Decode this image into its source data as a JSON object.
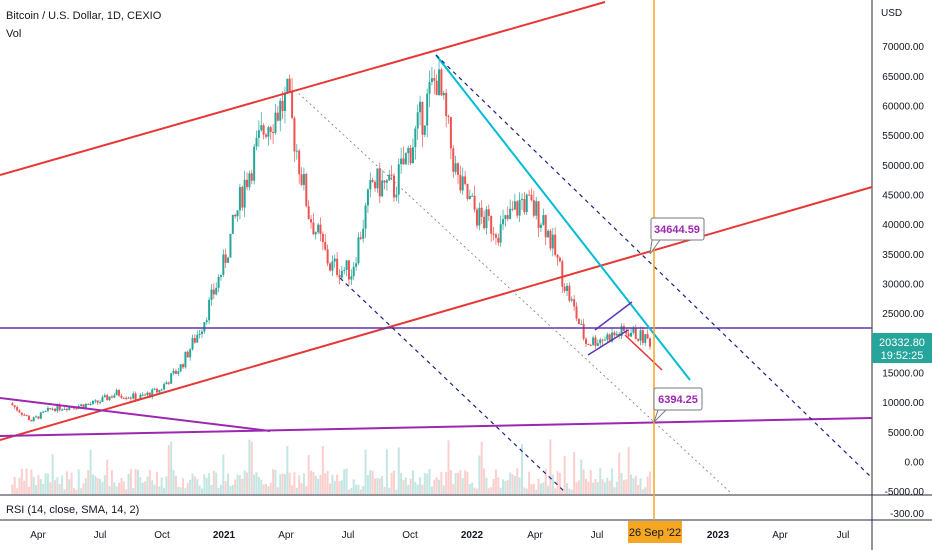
{
  "header": {
    "title": "Bitcoin / U.S. Dollar, 1D, CEXIO",
    "volume_label": "Vol",
    "rsi_label": "RSI (14, close, SMA, 14, 2)",
    "currency": "USD"
  },
  "price_axis": {
    "ticks": [
      "70000.00",
      "65000.00",
      "60000.00",
      "55000.00",
      "50000.00",
      "45000.00",
      "40000.00",
      "35000.00",
      "30000.00",
      "25000.00",
      "15000.00",
      "10000.00",
      "5000.00",
      "0.00",
      "-5000.00"
    ],
    "last_price": "20332.80",
    "countdown": "19:52:25",
    "rsi_tick": "-300.00"
  },
  "time_axis": {
    "ticks": [
      "Apr",
      "Jul",
      "Oct",
      "2021",
      "Apr",
      "Jul",
      "Oct",
      "2022",
      "Apr",
      "Jul",
      "2023",
      "Apr",
      "Jul"
    ],
    "bold_ticks": [
      "2021",
      "2022",
      "2023"
    ],
    "cursor_label": "26 Sep '22"
  },
  "annotations": [
    {
      "text": "34644.59",
      "color": "#9c27b0"
    },
    {
      "text": "6394.25",
      "color": "#9c27b0"
    }
  ],
  "colors": {
    "up": "#26a69a",
    "down": "#ef5350",
    "channel": "#e53935",
    "purple": "#7b1fa2",
    "cyan": "#00bcd4",
    "dashed_blue": "#1a237e",
    "cursor": "#f5a623",
    "horizontal": "#5e35b1"
  },
  "chart_data": {
    "type": "line",
    "title": "Bitcoin / U.S. Dollar, 1D, CEXIO",
    "ylabel": "USD",
    "ylim": [
      -5000,
      72000
    ],
    "series": [
      {
        "name": "BTCUSD",
        "x": [
          "2020-03",
          "2020-04",
          "2020-05",
          "2020-06",
          "2020-07",
          "2020-08",
          "2020-09",
          "2020-10",
          "2020-11",
          "2020-12",
          "2021-01",
          "2021-02",
          "2021-03",
          "2021-04",
          "2021-05",
          "2021-06",
          "2021-07",
          "2021-08",
          "2021-09",
          "2021-10",
          "2021-11",
          "2021-12",
          "2022-01",
          "2022-02",
          "2022-03",
          "2022-04",
          "2022-05",
          "2022-06",
          "2022-07",
          "2022-08",
          "2022-09"
        ],
        "values": [
          9800,
          6900,
          9000,
          9300,
          9800,
          11500,
          10700,
          12000,
          16000,
          23000,
          33000,
          47000,
          57000,
          61000,
          42000,
          33000,
          32000,
          47000,
          46000,
          55000,
          65000,
          47000,
          41000,
          39000,
          44000,
          41000,
          30000,
          20000,
          21000,
          22000,
          20300
        ]
      }
    ],
    "annotations": [
      "34644.59",
      "6394.25"
    ],
    "highlighted_date": "26 Sep '22"
  }
}
